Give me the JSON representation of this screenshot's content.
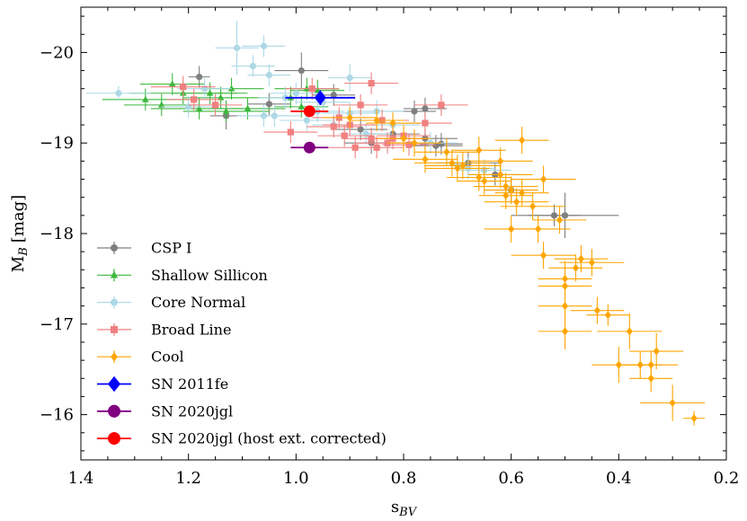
{
  "chart_data": {
    "type": "scatter",
    "title": "",
    "xlabel": "s",
    "xlabel_sub": "BV",
    "ylabel": "M",
    "ylabel_sub": "B",
    "ylabel_unit": "[mag]",
    "xlim": [
      1.4,
      0.2
    ],
    "ylim": [
      -15.5,
      -20.5
    ],
    "x_inverted": true,
    "y_inverted": true,
    "x_ticks": [
      1.4,
      1.2,
      1.0,
      0.8,
      0.6,
      0.4,
      0.2
    ],
    "x_tick_labels": [
      "1.4",
      "1.2",
      "1.0",
      "0.8",
      "0.6",
      "0.4",
      "0.2"
    ],
    "y_ticks": [
      -20,
      -19,
      -18,
      -17,
      -16
    ],
    "y_tick_labels": [
      "−20",
      "−19",
      "−18",
      "−17",
      "−16"
    ],
    "grid": false,
    "legend_position": "lower-left",
    "series": [
      {
        "name": "CSP I",
        "color": "#7f7f7f",
        "marker": "circle",
        "points": [
          [
            1.18,
            -19.73,
            0.02,
            0.12
          ],
          [
            1.13,
            -19.3,
            0.03,
            0.15
          ],
          [
            1.05,
            -19.43,
            0.04,
            0.12
          ],
          [
            0.99,
            -19.8,
            0.05,
            0.2
          ],
          [
            0.93,
            -19.53,
            0.04,
            0.12
          ],
          [
            0.86,
            -19.0,
            0.05,
            0.12
          ],
          [
            0.78,
            -19.35,
            0.04,
            0.12
          ],
          [
            0.76,
            -19.38,
            0.04,
            0.12
          ],
          [
            0.76,
            -19.05,
            0.06,
            0.12
          ],
          [
            0.74,
            -18.97,
            0.05,
            0.12
          ],
          [
            0.73,
            -18.99,
            0.04,
            0.12
          ],
          [
            0.68,
            -18.78,
            0.06,
            0.12
          ],
          [
            0.63,
            -18.65,
            0.05,
            0.12
          ],
          [
            0.6,
            -18.48,
            0.05,
            0.15
          ],
          [
            0.52,
            -18.2,
            0.05,
            0.12
          ],
          [
            0.5,
            -18.2,
            0.1,
            0.25
          ],
          [
            0.88,
            -19.15,
            0.05,
            0.12
          ],
          [
            0.82,
            -19.1,
            0.05,
            0.12
          ]
        ]
      },
      {
        "name": "Shallow Sillicon",
        "color": "#3cb83c",
        "marker": "triangle",
        "points": [
          [
            1.28,
            -19.48,
            0.08,
            0.12
          ],
          [
            1.25,
            -19.42,
            0.07,
            0.12
          ],
          [
            1.23,
            -19.65,
            0.06,
            0.12
          ],
          [
            1.21,
            -19.55,
            0.1,
            0.12
          ],
          [
            1.18,
            -19.38,
            0.09,
            0.12
          ],
          [
            1.16,
            -19.55,
            0.07,
            0.12
          ],
          [
            1.14,
            -19.5,
            0.07,
            0.12
          ],
          [
            1.13,
            -19.35,
            0.08,
            0.12
          ],
          [
            1.12,
            -19.6,
            0.06,
            0.12
          ],
          [
            1.09,
            -19.38,
            0.07,
            0.12
          ],
          [
            1.01,
            -19.5,
            0.06,
            0.12
          ],
          [
            0.99,
            -19.4,
            0.05,
            0.12
          ],
          [
            0.98,
            -19.6,
            0.06,
            0.12
          ],
          [
            0.96,
            -19.58,
            0.05,
            0.12
          ]
        ]
      },
      {
        "name": "Core Normal",
        "color": "#add8e6",
        "marker": "circle",
        "points": [
          [
            1.33,
            -19.55,
            0.06,
            0.08
          ],
          [
            1.2,
            -19.4,
            0.05,
            0.12
          ],
          [
            1.17,
            -19.6,
            0.05,
            0.12
          ],
          [
            1.11,
            -20.05,
            0.04,
            0.3
          ],
          [
            1.08,
            -19.85,
            0.04,
            0.12
          ],
          [
            1.06,
            -20.07,
            0.04,
            0.12
          ],
          [
            1.05,
            -19.75,
            0.04,
            0.12
          ],
          [
            1.04,
            -19.3,
            0.05,
            0.12
          ],
          [
            1.02,
            -19.5,
            0.05,
            0.12
          ],
          [
            1.0,
            -19.55,
            0.05,
            0.12
          ],
          [
            0.98,
            -19.25,
            0.05,
            0.12
          ],
          [
            0.95,
            -19.45,
            0.05,
            0.12
          ],
          [
            0.93,
            -19.2,
            0.04,
            0.12
          ],
          [
            0.9,
            -19.72,
            0.04,
            0.15
          ],
          [
            0.9,
            -19.33,
            0.05,
            0.12
          ],
          [
            0.87,
            -19.1,
            0.05,
            0.12
          ],
          [
            0.85,
            -19.35,
            0.05,
            0.12
          ],
          [
            0.82,
            -19.2,
            0.05,
            0.12
          ],
          [
            0.75,
            -19.0,
            0.05,
            0.12
          ],
          [
            0.7,
            -18.75,
            0.05,
            0.12
          ],
          [
            0.68,
            -18.72,
            0.05,
            0.12
          ],
          [
            0.65,
            -18.7,
            0.05,
            0.12
          ],
          [
            1.06,
            -19.3,
            0.05,
            0.12
          ],
          [
            0.96,
            -19.35,
            0.05,
            0.12
          ]
        ]
      },
      {
        "name": "Broad Line",
        "color": "#f08080",
        "marker": "square",
        "points": [
          [
            1.21,
            -19.62,
            0.06,
            0.12
          ],
          [
            1.19,
            -19.48,
            0.05,
            0.12
          ],
          [
            1.15,
            -19.42,
            0.05,
            0.12
          ],
          [
            1.01,
            -19.12,
            0.05,
            0.12
          ],
          [
            0.97,
            -19.6,
            0.05,
            0.12
          ],
          [
            0.93,
            -19.18,
            0.05,
            0.12
          ],
          [
            0.92,
            -19.28,
            0.05,
            0.12
          ],
          [
            0.91,
            -19.08,
            0.05,
            0.12
          ],
          [
            0.9,
            -19.2,
            0.05,
            0.12
          ],
          [
            0.88,
            -19.42,
            0.05,
            0.12
          ],
          [
            0.86,
            -19.66,
            0.05,
            0.12
          ],
          [
            0.86,
            -19.05,
            0.05,
            0.12
          ],
          [
            0.85,
            -18.95,
            0.05,
            0.12
          ],
          [
            0.84,
            -19.25,
            0.05,
            0.12
          ],
          [
            0.83,
            -19.0,
            0.06,
            0.12
          ],
          [
            0.82,
            -19.05,
            0.06,
            0.12
          ],
          [
            0.8,
            -19.08,
            0.05,
            0.12
          ],
          [
            0.79,
            -18.98,
            0.05,
            0.12
          ],
          [
            0.76,
            -19.22,
            0.05,
            0.12
          ],
          [
            0.73,
            -19.42,
            0.05,
            0.12
          ],
          [
            0.89,
            -18.95,
            0.05,
            0.12
          ]
        ]
      },
      {
        "name": "Cool",
        "color": "#ffa500",
        "marker": "diamond",
        "points": [
          [
            0.9,
            -19.28,
            0.05,
            0.12
          ],
          [
            0.82,
            -19.22,
            0.05,
            0.12
          ],
          [
            0.78,
            -19.0,
            0.05,
            0.15
          ],
          [
            0.76,
            -18.82,
            0.06,
            0.15
          ],
          [
            0.72,
            -18.9,
            0.06,
            0.15
          ],
          [
            0.71,
            -18.78,
            0.07,
            0.15
          ],
          [
            0.7,
            -18.72,
            0.06,
            0.15
          ],
          [
            0.69,
            -18.75,
            0.07,
            0.15
          ],
          [
            0.66,
            -18.92,
            0.05,
            0.15
          ],
          [
            0.66,
            -18.62,
            0.06,
            0.15
          ],
          [
            0.65,
            -18.58,
            0.05,
            0.15
          ],
          [
            0.62,
            -18.8,
            0.06,
            0.15
          ],
          [
            0.62,
            -18.65,
            0.06,
            0.15
          ],
          [
            0.61,
            -18.52,
            0.06,
            0.15
          ],
          [
            0.61,
            -18.42,
            0.05,
            0.15
          ],
          [
            0.6,
            -18.48,
            0.05,
            0.15
          ],
          [
            0.6,
            -18.05,
            0.05,
            0.15
          ],
          [
            0.59,
            -18.35,
            0.06,
            0.15
          ],
          [
            0.58,
            -18.45,
            0.05,
            0.15
          ],
          [
            0.58,
            -19.03,
            0.05,
            0.15
          ],
          [
            0.56,
            -18.3,
            0.06,
            0.15
          ],
          [
            0.55,
            -18.05,
            0.06,
            0.15
          ],
          [
            0.54,
            -18.6,
            0.06,
            0.15
          ],
          [
            0.54,
            -17.76,
            0.06,
            0.15
          ],
          [
            0.51,
            -18.15,
            0.05,
            0.15
          ],
          [
            0.5,
            -17.2,
            0.05,
            0.2
          ],
          [
            0.5,
            -17.5,
            0.05,
            0.2
          ],
          [
            0.5,
            -17.42,
            0.05,
            0.2
          ],
          [
            0.5,
            -16.92,
            0.05,
            0.2
          ],
          [
            0.48,
            -17.62,
            0.05,
            0.15
          ],
          [
            0.47,
            -17.72,
            0.05,
            0.15
          ],
          [
            0.45,
            -17.68,
            0.06,
            0.15
          ],
          [
            0.44,
            -17.15,
            0.05,
            0.15
          ],
          [
            0.42,
            -17.1,
            0.04,
            0.12
          ],
          [
            0.4,
            -16.55,
            0.05,
            0.2
          ],
          [
            0.38,
            -16.92,
            0.06,
            0.2
          ],
          [
            0.36,
            -16.55,
            0.04,
            0.15
          ],
          [
            0.34,
            -16.4,
            0.04,
            0.15
          ],
          [
            0.34,
            -16.55,
            0.05,
            0.15
          ],
          [
            0.33,
            -16.7,
            0.05,
            0.2
          ],
          [
            0.3,
            -16.13,
            0.06,
            0.2
          ],
          [
            0.26,
            -15.96,
            0.02,
            0.08
          ],
          [
            0.85,
            -19.25,
            0.05,
            0.12
          ],
          [
            0.8,
            -19.05,
            0.05,
            0.15
          ]
        ]
      },
      {
        "name": "SN 2011fe",
        "color": "#0000ff",
        "marker": "diamond",
        "size": "large",
        "points": [
          [
            0.955,
            -19.5,
            0.065,
            0.08
          ]
        ]
      },
      {
        "name": "SN 2020jgl",
        "color": "#800080",
        "marker": "circle",
        "size": "large",
        "points": [
          [
            0.975,
            -18.95,
            0.035,
            0.06
          ]
        ]
      },
      {
        "name": "SN 2020jgl (host ext. corrected)",
        "color": "#ff0000",
        "marker": "circle",
        "size": "large",
        "points": [
          [
            0.975,
            -19.35,
            0.035,
            0.06
          ]
        ]
      }
    ]
  }
}
